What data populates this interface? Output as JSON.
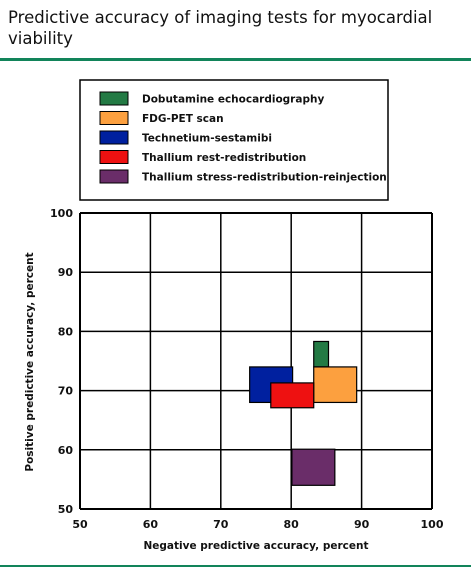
{
  "page": {
    "title": "Predictive accuracy of imaging tests for myocardial viability",
    "accent_color": "#12845a"
  },
  "chart_data": {
    "type": "scatter",
    "title": "Predictive accuracy of imaging tests for myocardial viability",
    "xlabel": "Negative predictive accuracy, percent",
    "ylabel": "Positive predictive accuracy, percent",
    "xlim": [
      50,
      100
    ],
    "ylim": [
      50,
      100
    ],
    "xticks": [
      50,
      60,
      70,
      80,
      90,
      100
    ],
    "yticks": [
      50,
      60,
      70,
      80,
      90,
      100
    ],
    "grid": true,
    "legend_position": "top",
    "series": [
      {
        "name": "Dobutamine echocardiography",
        "color": "#237a44",
        "x_range": [
          83.2,
          85.3
        ],
        "y_range": [
          74,
          78.3
        ]
      },
      {
        "name": "FDG-PET scan",
        "color": "#fca03f",
        "x_range": [
          83.2,
          89.3
        ],
        "y_range": [
          68,
          74
        ]
      },
      {
        "name": "Technetium-sestamibi",
        "color": "#00209f",
        "x_range": [
          74.1,
          80.2
        ],
        "y_range": [
          68,
          74
        ]
      },
      {
        "name": "Thallium rest-redistribution",
        "color": "#ee1111",
        "x_range": [
          77.1,
          83.2
        ],
        "y_range": [
          67.1,
          71.3
        ]
      },
      {
        "name": "Thallium stress-redistribution-reinjection",
        "color": "#6a2d69",
        "x_range": [
          80.1,
          86.2
        ],
        "y_range": [
          54,
          60.1
        ]
      }
    ]
  }
}
